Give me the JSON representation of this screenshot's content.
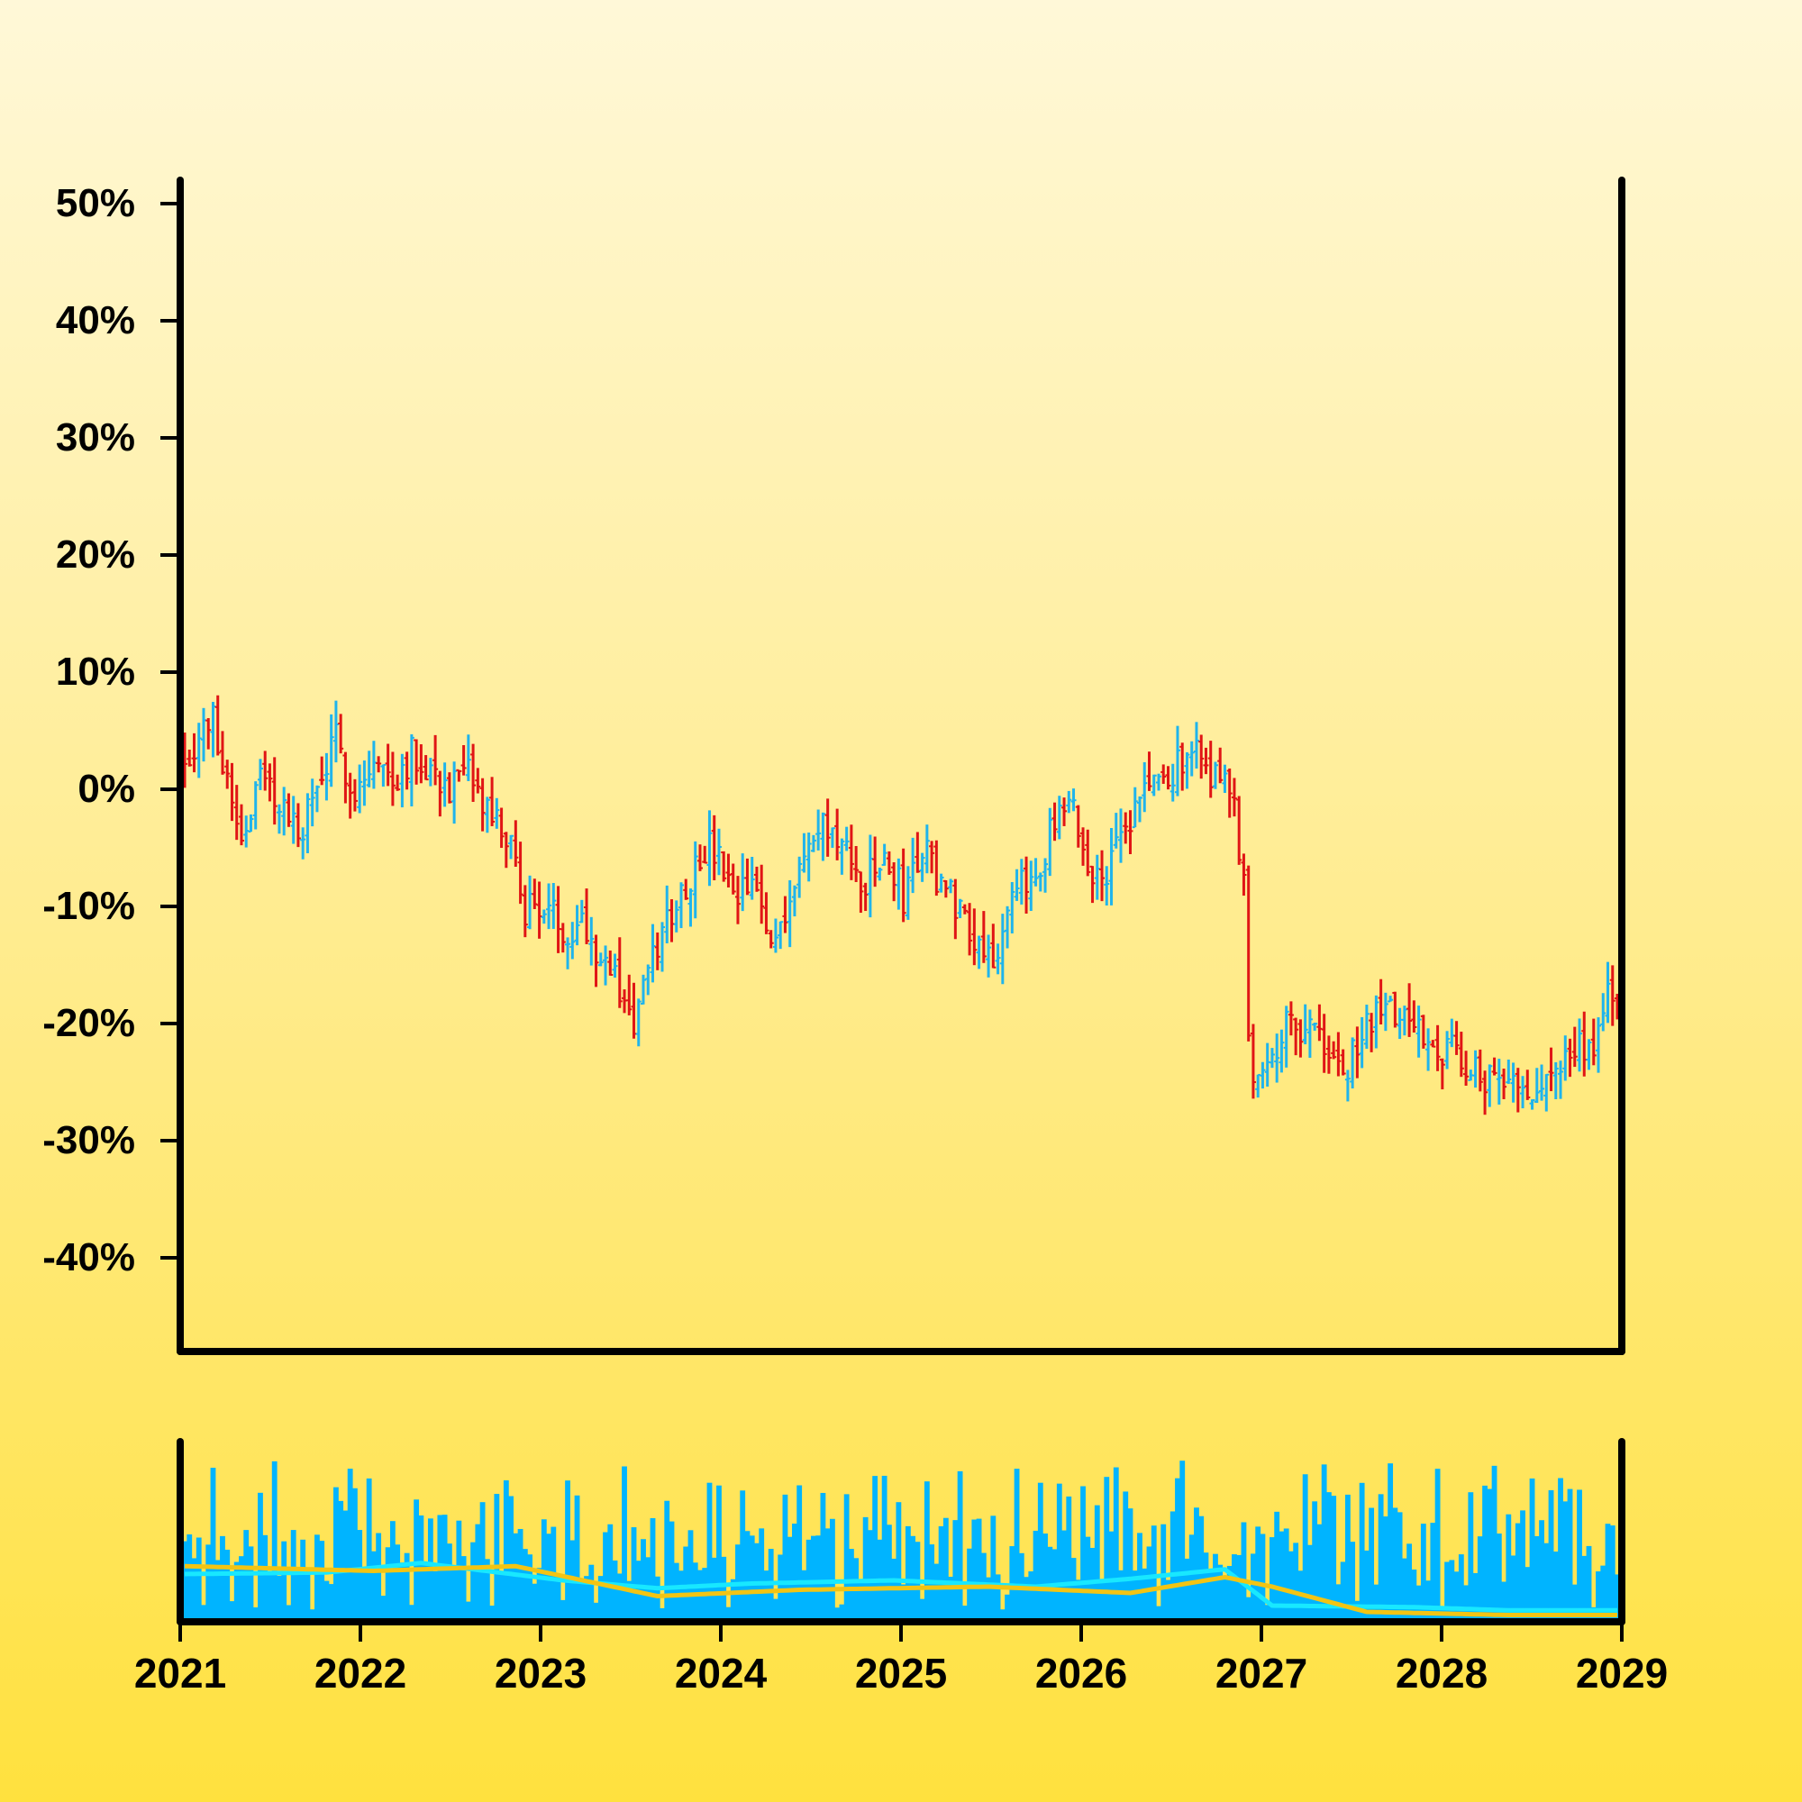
{
  "chart_data": {
    "type": "ohlc",
    "title": "",
    "xlabel": "",
    "ylabel": "",
    "x_range": [
      "2021-01-01",
      "2029-01-01"
    ],
    "x_ticks": [
      "2021",
      "2022",
      "2023",
      "2024",
      "2025",
      "2026",
      "2027",
      "2028",
      "2029"
    ],
    "ylim": [
      -48,
      52
    ],
    "y_ticks": [
      "50%",
      "40%",
      "30%",
      "20%",
      "10%",
      "0%",
      "-10%",
      "-20%",
      "-30%",
      "-40%"
    ],
    "y_tick_values": [
      50,
      40,
      30,
      20,
      10,
      0,
      -10,
      -20,
      -30,
      -40
    ],
    "colors": {
      "up": "#1fb4ec",
      "down": "#e01515",
      "volume": "#00b4ff",
      "ma_fast": "#18e8ff",
      "ma_slow": "#f2c414",
      "axis": "#000000"
    },
    "price_anchors_weekly_close_pct": [
      [
        0,
        3
      ],
      [
        6,
        6
      ],
      [
        9,
        1
      ],
      [
        12,
        -4
      ],
      [
        16,
        1
      ],
      [
        20,
        -1
      ],
      [
        24,
        -4
      ],
      [
        28,
        0
      ],
      [
        32,
        4
      ],
      [
        36,
        0
      ],
      [
        40,
        2
      ],
      [
        44,
        1
      ],
      [
        48,
        3
      ],
      [
        52,
        2
      ],
      [
        56,
        0
      ],
      [
        60,
        1
      ],
      [
        64,
        -2
      ],
      [
        68,
        -4
      ],
      [
        72,
        -10
      ],
      [
        76,
        -10
      ],
      [
        80,
        -12
      ],
      [
        84,
        -11
      ],
      [
        88,
        -14
      ],
      [
        92,
        -17
      ],
      [
        95,
        -20
      ],
      [
        98,
        -16
      ],
      [
        102,
        -11
      ],
      [
        106,
        -8
      ],
      [
        110,
        -5
      ],
      [
        113,
        -6
      ],
      [
        116,
        -10
      ],
      [
        120,
        -8
      ],
      [
        124,
        -13
      ],
      [
        128,
        -9
      ],
      [
        132,
        -5
      ],
      [
        136,
        -3
      ],
      [
        140,
        -6
      ],
      [
        144,
        -8
      ],
      [
        148,
        -6
      ],
      [
        152,
        -9
      ],
      [
        156,
        -5
      ],
      [
        160,
        -8
      ],
      [
        164,
        -10
      ],
      [
        168,
        -13
      ],
      [
        172,
        -14
      ],
      [
        176,
        -9
      ],
      [
        180,
        -7
      ],
      [
        184,
        -3
      ],
      [
        188,
        -2
      ],
      [
        192,
        -8
      ],
      [
        196,
        -6
      ],
      [
        200,
        -3
      ],
      [
        204,
        1
      ],
      [
        208,
        0
      ],
      [
        212,
        4
      ],
      [
        216,
        2
      ],
      [
        220,
        1
      ],
      [
        222,
        -2
      ],
      [
        224,
        -8
      ],
      [
        225,
        -21
      ],
      [
        226,
        -24
      ],
      [
        230,
        -22
      ],
      [
        234,
        -20
      ],
      [
        238,
        -20
      ],
      [
        242,
        -23
      ],
      [
        246,
        -24
      ],
      [
        250,
        -20
      ],
      [
        254,
        -19
      ],
      [
        258,
        -19
      ],
      [
        262,
        -21
      ],
      [
        266,
        -22
      ],
      [
        270,
        -23
      ],
      [
        274,
        -24
      ],
      [
        278,
        -26
      ],
      [
        282,
        -24
      ],
      [
        286,
        -26
      ],
      [
        290,
        -24
      ],
      [
        294,
        -22
      ],
      [
        298,
        -23
      ],
      [
        300,
        -19
      ],
      [
        302,
        -17
      ],
      [
        304,
        -18
      ]
    ],
    "volume_ma_fast_anchors": [
      [
        0,
        0.28
      ],
      [
        30,
        0.29
      ],
      [
        50,
        0.35
      ],
      [
        80,
        0.24
      ],
      [
        100,
        0.19
      ],
      [
        120,
        0.22
      ],
      [
        150,
        0.24
      ],
      [
        180,
        0.2
      ],
      [
        200,
        0.25
      ],
      [
        220,
        0.31
      ],
      [
        230,
        0.08
      ],
      [
        260,
        0.07
      ],
      [
        280,
        0.05
      ],
      [
        304,
        0.05
      ]
    ],
    "volume_ma_slow_anchors": [
      [
        0,
        0.33
      ],
      [
        40,
        0.3
      ],
      [
        70,
        0.33
      ],
      [
        100,
        0.14
      ],
      [
        130,
        0.18
      ],
      [
        170,
        0.2
      ],
      [
        200,
        0.16
      ],
      [
        220,
        0.26
      ],
      [
        230,
        0.2
      ],
      [
        250,
        0.04
      ],
      [
        280,
        0.02
      ],
      [
        304,
        0.02
      ]
    ],
    "weeks": 304,
    "seed": 7
  }
}
